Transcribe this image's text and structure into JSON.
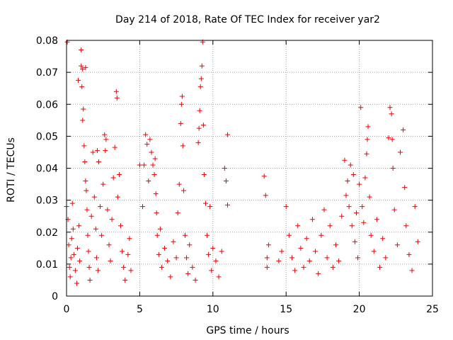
{
  "chart_data": {
    "type": "scatter",
    "title": "Day 214 of 2018, Rate Of TEC Index for receiver yar2",
    "xlabel": "GPS time / hours",
    "ylabel": "ROTI / TECUs",
    "xlim": [
      0,
      25
    ],
    "ylim": [
      0,
      0.08
    ],
    "xticks": [
      0,
      5,
      10,
      15,
      20,
      25
    ],
    "xtick_labels": [
      "0",
      "5",
      "10",
      "15",
      "20",
      "25"
    ],
    "yticks": [
      0,
      0.01,
      0.02,
      0.03,
      0.04,
      0.05,
      0.06,
      0.07,
      0.08
    ],
    "ytick_labels": [
      "0",
      "0.01",
      "0.02",
      "0.03",
      "0.04",
      "0.05",
      "0.06",
      "0.07",
      "0.08"
    ],
    "grid": true,
    "marker": "+",
    "color": "#ee0000",
    "series": [
      {
        "name": "ROTI",
        "points": [
          [
            0.0,
            0.028
          ],
          [
            0.05,
            0.0795
          ],
          [
            0.1,
            0.024
          ],
          [
            0.15,
            0.016
          ],
          [
            0.2,
            0.009
          ],
          [
            0.25,
            0.006
          ],
          [
            0.3,
            0.012
          ],
          [
            0.35,
            0.018
          ],
          [
            0.4,
            0.029
          ],
          [
            0.45,
            0.021
          ],
          [
            0.5,
            0.013
          ],
          [
            0.6,
            0.008
          ],
          [
            0.7,
            0.004
          ],
          [
            0.75,
            0.015
          ],
          [
            0.8,
            0.0675
          ],
          [
            0.85,
            0.022
          ],
          [
            0.9,
            0.011
          ],
          [
            1.0,
            0.077
          ],
          [
            1.0,
            0.072
          ],
          [
            1.05,
            0.0655
          ],
          [
            1.1,
            0.071
          ],
          [
            1.1,
            0.055
          ],
          [
            1.15,
            0.0585
          ],
          [
            1.2,
            0.047
          ],
          [
            1.25,
            0.042
          ],
          [
            1.3,
            0.036
          ],
          [
            1.3,
            0.0715
          ],
          [
            1.35,
            0.033
          ],
          [
            1.4,
            0.027
          ],
          [
            1.45,
            0.019
          ],
          [
            1.5,
            0.014
          ],
          [
            1.55,
            0.009
          ],
          [
            1.6,
            0.005
          ],
          [
            1.7,
            0.025
          ],
          [
            1.8,
            0.045
          ],
          [
            1.9,
            0.031
          ],
          [
            2.0,
            0.021
          ],
          [
            2.05,
            0.012
          ],
          [
            2.1,
            0.0455
          ],
          [
            2.15,
            0.008
          ],
          [
            2.2,
            0.042
          ],
          [
            2.3,
            0.028
          ],
          [
            2.4,
            0.019
          ],
          [
            2.5,
            0.035
          ],
          [
            2.6,
            0.0505
          ],
          [
            2.65,
            0.0455
          ],
          [
            2.7,
            0.049
          ],
          [
            2.8,
            0.027
          ],
          [
            2.9,
            0.016
          ],
          [
            3.0,
            0.011
          ],
          [
            3.1,
            0.024
          ],
          [
            3.2,
            0.037
          ],
          [
            3.3,
            0.0465
          ],
          [
            3.4,
            0.064
          ],
          [
            3.45,
            0.062
          ],
          [
            3.5,
            0.031
          ],
          [
            3.6,
            0.038
          ],
          [
            3.7,
            0.022
          ],
          [
            3.8,
            0.014
          ],
          [
            3.9,
            0.009
          ],
          [
            4.0,
            0.005
          ],
          [
            4.2,
            0.013
          ],
          [
            4.3,
            0.018
          ],
          [
            4.4,
            0.008
          ],
          [
            5.0,
            0.041
          ],
          [
            5.2,
            0.028
          ],
          [
            5.3,
            0.041
          ],
          [
            5.4,
            0.0505
          ],
          [
            5.5,
            0.0475
          ],
          [
            5.6,
            0.036
          ],
          [
            5.7,
            0.049
          ],
          [
            5.8,
            0.045
          ],
          [
            5.9,
            0.041
          ],
          [
            6.0,
            0.038
          ],
          [
            6.05,
            0.043
          ],
          [
            6.1,
            0.032
          ],
          [
            6.15,
            0.026
          ],
          [
            6.2,
            0.019
          ],
          [
            6.3,
            0.013
          ],
          [
            6.4,
            0.021
          ],
          [
            6.5,
            0.009
          ],
          [
            6.7,
            0.015
          ],
          [
            6.9,
            0.011
          ],
          [
            7.1,
            0.006
          ],
          [
            7.3,
            0.017
          ],
          [
            7.5,
            0.012
          ],
          [
            7.6,
            0.026
          ],
          [
            7.7,
            0.035
          ],
          [
            7.8,
            0.054
          ],
          [
            7.85,
            0.06
          ],
          [
            7.9,
            0.0625
          ],
          [
            7.95,
            0.047
          ],
          [
            8.0,
            0.033
          ],
          [
            8.1,
            0.019
          ],
          [
            8.2,
            0.012
          ],
          [
            8.3,
            0.007
          ],
          [
            8.4,
            0.016
          ],
          [
            8.6,
            0.009
          ],
          [
            8.8,
            0.005
          ],
          [
            9.0,
            0.048
          ],
          [
            9.05,
            0.0525
          ],
          [
            9.1,
            0.058
          ],
          [
            9.15,
            0.0655
          ],
          [
            9.2,
            0.068
          ],
          [
            9.25,
            0.072
          ],
          [
            9.3,
            0.0795
          ],
          [
            9.35,
            0.0535
          ],
          [
            9.4,
            0.038
          ],
          [
            9.5,
            0.029
          ],
          [
            9.6,
            0.019
          ],
          [
            9.7,
            0.013
          ],
          [
            9.8,
            0.028
          ],
          [
            9.9,
            0.008
          ],
          [
            10.0,
            0.015
          ],
          [
            10.2,
            0.011
          ],
          [
            10.4,
            0.006
          ],
          [
            10.6,
            0.014
          ],
          [
            10.8,
            0.04
          ],
          [
            10.9,
            0.036
          ],
          [
            11.0,
            0.0505
          ],
          [
            11.0,
            0.0285
          ],
          [
            13.5,
            0.0375
          ],
          [
            13.6,
            0.0315
          ],
          [
            13.7,
            0.009
          ],
          [
            13.7,
            0.012
          ],
          [
            13.8,
            0.016
          ],
          [
            14.5,
            0.011
          ],
          [
            14.7,
            0.014
          ],
          [
            15.0,
            0.028
          ],
          [
            15.2,
            0.019
          ],
          [
            15.4,
            0.012
          ],
          [
            15.6,
            0.008
          ],
          [
            15.8,
            0.022
          ],
          [
            16.0,
            0.015
          ],
          [
            16.2,
            0.009
          ],
          [
            16.4,
            0.018
          ],
          [
            16.6,
            0.011
          ],
          [
            16.8,
            0.024
          ],
          [
            17.0,
            0.014
          ],
          [
            17.2,
            0.007
          ],
          [
            17.4,
            0.019
          ],
          [
            17.6,
            0.027
          ],
          [
            17.8,
            0.012
          ],
          [
            18.0,
            0.022
          ],
          [
            18.2,
            0.009
          ],
          [
            18.4,
            0.016
          ],
          [
            18.6,
            0.011
          ],
          [
            18.8,
            0.025
          ],
          [
            19.0,
            0.0425
          ],
          [
            19.1,
            0.0315
          ],
          [
            19.2,
            0.036
          ],
          [
            19.3,
            0.028
          ],
          [
            19.4,
            0.041
          ],
          [
            19.5,
            0.022
          ],
          [
            19.6,
            0.038
          ],
          [
            19.7,
            0.017
          ],
          [
            19.8,
            0.026
          ],
          [
            19.9,
            0.012
          ],
          [
            20.0,
            0.035
          ],
          [
            20.1,
            0.059
          ],
          [
            20.2,
            0.028
          ],
          [
            20.3,
            0.023
          ],
          [
            20.4,
            0.037
          ],
          [
            20.5,
            0.0445
          ],
          [
            20.55,
            0.049
          ],
          [
            20.6,
            0.053
          ],
          [
            20.7,
            0.031
          ],
          [
            20.8,
            0.019
          ],
          [
            21.0,
            0.014
          ],
          [
            21.2,
            0.024
          ],
          [
            21.4,
            0.009
          ],
          [
            21.6,
            0.018
          ],
          [
            21.8,
            0.012
          ],
          [
            22.0,
            0.0495
          ],
          [
            22.1,
            0.059
          ],
          [
            22.2,
            0.057
          ],
          [
            22.25,
            0.049
          ],
          [
            22.3,
            0.04
          ],
          [
            22.4,
            0.027
          ],
          [
            22.6,
            0.016
          ],
          [
            22.8,
            0.045
          ],
          [
            23.0,
            0.052
          ],
          [
            23.1,
            0.034
          ],
          [
            23.2,
            0.022
          ],
          [
            23.4,
            0.013
          ],
          [
            23.6,
            0.008
          ],
          [
            23.8,
            0.028
          ],
          [
            24.0,
            0.017
          ]
        ]
      }
    ]
  }
}
